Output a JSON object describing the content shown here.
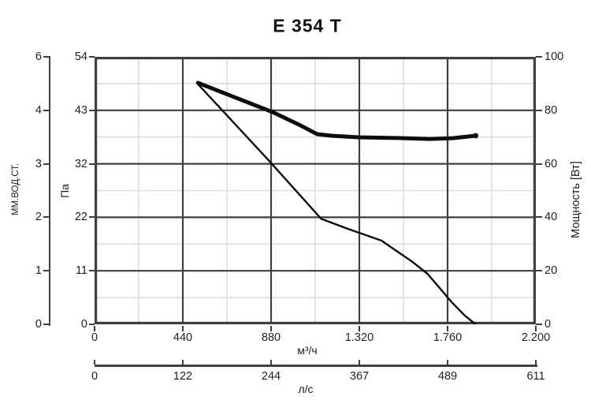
{
  "chart_data": {
    "type": "line",
    "title": "E 354 T",
    "grid": {
      "major_fracs": [
        0.2,
        0.4,
        0.6,
        0.8
      ],
      "minor_fracs": [
        0.1,
        0.3,
        0.5,
        0.7,
        0.9
      ]
    },
    "x_axis": {
      "label": "м³/ч",
      "min": 0,
      "max": 2200,
      "ticks": [
        "0",
        "440",
        "880",
        "1.320",
        "1.760",
        "2.200"
      ]
    },
    "x_axis_secondary": {
      "label": "л/с",
      "min": 0,
      "max": 611,
      "ticks": [
        "0",
        "122",
        "244",
        "367",
        "489",
        "611"
      ]
    },
    "y_axis_left_outer": {
      "label": "ММ.ВОД.СТ.",
      "ticks": [
        "6",
        "4",
        "3",
        "2",
        "1",
        "0"
      ]
    },
    "y_axis_left_inner": {
      "label": "Па",
      "min": 0,
      "max": 54,
      "ticks": [
        "54",
        "43",
        "32",
        "22",
        "11",
        "0"
      ]
    },
    "y_axis_right": {
      "label": "Мощность [Вт]",
      "min": 0,
      "max": 100,
      "ticks": [
        "100",
        "80",
        "60",
        "40",
        "20",
        "0"
      ]
    },
    "series": [
      {
        "name": "pressure-curve",
        "y_axis": "left",
        "unit": "Па",
        "stroke_width": 2.4,
        "end_dot": false,
        "points": [
          [
            515,
            48.5
          ],
          [
            870,
            33
          ],
          [
            1130,
            21.3
          ],
          [
            1260,
            19.3
          ],
          [
            1430,
            16.9
          ],
          [
            1585,
            12.6
          ],
          [
            1660,
            10.2
          ],
          [
            1715,
            7.6
          ],
          [
            1780,
            4.5
          ],
          [
            1845,
            1.8
          ],
          [
            1900,
            0
          ]
        ]
      },
      {
        "name": "power-curve",
        "y_axis": "right",
        "unit": "Вт",
        "stroke_width": 5,
        "end_dot": true,
        "points": [
          [
            515,
            90.3
          ],
          [
            705,
            84.7
          ],
          [
            885,
            79.4
          ],
          [
            1020,
            74.6
          ],
          [
            1110,
            71.1
          ],
          [
            1180,
            70.5
          ],
          [
            1315,
            69.9
          ],
          [
            1540,
            69.6
          ],
          [
            1670,
            69.3
          ],
          [
            1785,
            69.6
          ],
          [
            1900,
            70.5
          ]
        ]
      }
    ],
    "colors": {
      "curve": "#0d0d0d",
      "grid_major": "#3f3f3f",
      "grid_minor": "#dcdcdc",
      "axis": "#3f3f3f",
      "text": "#1c1c1c",
      "background": "#ffffff"
    }
  }
}
